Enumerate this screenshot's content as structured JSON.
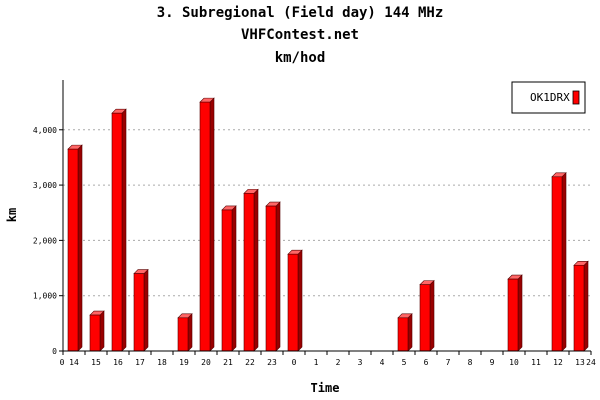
{
  "chart_data": {
    "type": "bar",
    "title": "3. Subregional (Field day) 144 MHz",
    "subtitle": "VHFContest.net",
    "subtitle2": "km/hod",
    "xlabel": "Time",
    "ylabel": "km",
    "categories": [
      "14",
      "15",
      "16",
      "17",
      "18",
      "19",
      "20",
      "21",
      "22",
      "23",
      "0",
      "1",
      "2",
      "3",
      "4",
      "5",
      "6",
      "7",
      "8",
      "9",
      "10",
      "11",
      "12",
      "13"
    ],
    "axis_start_label": "0",
    "axis_end_label": "24",
    "series": [
      {
        "name": "OK1DRX",
        "color": "#ff0000",
        "values": [
          3650,
          650,
          4300,
          1400,
          0,
          600,
          4500,
          2550,
          2850,
          2620,
          1750,
          0,
          0,
          0,
          0,
          600,
          1200,
          0,
          0,
          0,
          1300,
          0,
          3150,
          1550
        ]
      }
    ],
    "yticks": [
      0,
      1000,
      2000,
      3000,
      4000
    ],
    "ytick_labels": [
      "0",
      "1,000",
      "2,000",
      "3,000",
      "4,000"
    ],
    "ylim": [
      0,
      4900
    ],
    "grid": true,
    "legend_position": "top-right"
  }
}
